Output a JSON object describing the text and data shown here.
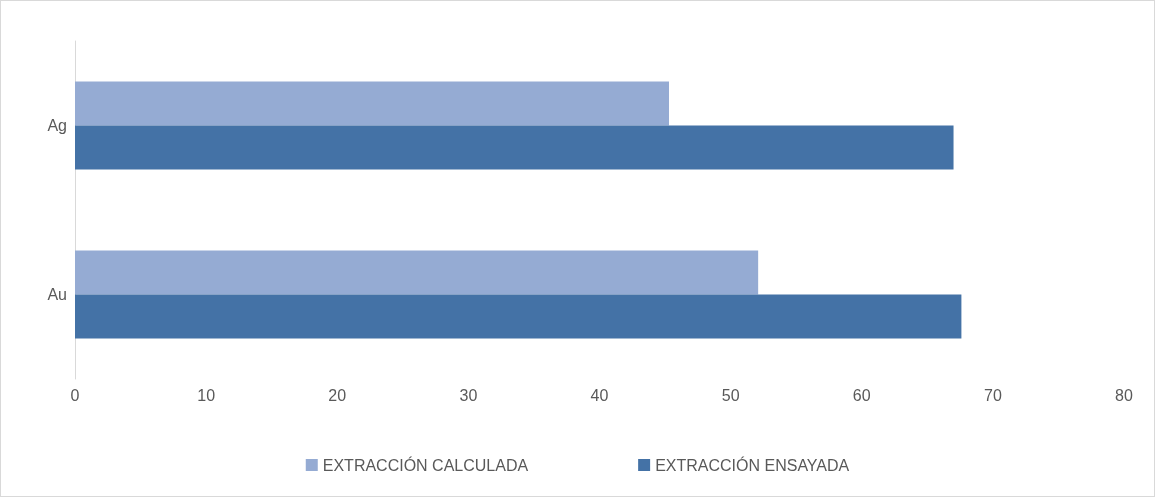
{
  "chart_data": {
    "type": "bar",
    "orientation": "horizontal",
    "categories": [
      "Ag",
      "Au"
    ],
    "series": [
      {
        "name": "EXTRACCIÓN CALCULADA",
        "color": "#95abd3",
        "values": [
          45.3,
          52.1
        ]
      },
      {
        "name": "EXTRACCIÓN ENSAYADA",
        "color": "#4472a6",
        "values": [
          67.0,
          67.6
        ]
      }
    ],
    "xlim": [
      0,
      80
    ],
    "xticks": [
      0,
      10,
      20,
      30,
      40,
      50,
      60,
      70,
      80
    ],
    "grid": false,
    "legend": "bottom"
  }
}
